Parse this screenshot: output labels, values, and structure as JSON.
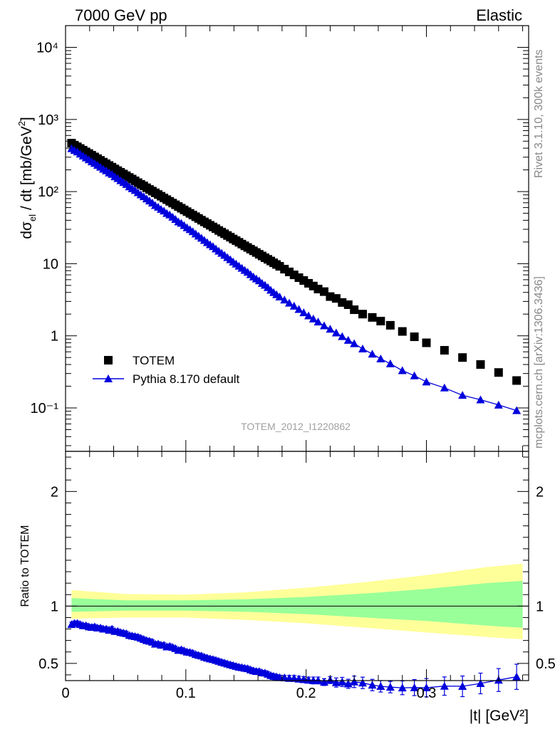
{
  "header": {
    "left": "7000 GeV pp",
    "right": "Elastic"
  },
  "side_texts": {
    "rivet": "Rivet 3.1.10,  300k events",
    "mcplots": "mcplots.cern.ch [arXiv:1306.3436]"
  },
  "chart_data": [
    {
      "type": "scatter",
      "panel": "main",
      "xlabel": "|t| [GeV²]",
      "ylabel": "dσ_el / dt [mb/GeV²]",
      "analysis_label": "TOTEM_2012_I1220862",
      "xlim": [
        0,
        0.385
      ],
      "ylim": [
        0.025,
        20000
      ],
      "yscale": "log",
      "x_ticks": [
        "0",
        "0.1",
        "0.2",
        "0.3"
      ],
      "y_ticks": [
        "10⁻¹",
        "1",
        "10",
        "10²",
        "10³",
        "10⁴"
      ],
      "legend_position": "bottom-left",
      "series": [
        {
          "name": "TOTEM",
          "marker": "square",
          "color": "#000000",
          "x": [
            0.005,
            0.0074,
            0.0098,
            0.0122,
            0.0146,
            0.017,
            0.0194,
            0.0218,
            0.0242,
            0.0266,
            0.029,
            0.0314,
            0.0338,
            0.0362,
            0.0386,
            0.041,
            0.0434,
            0.0458,
            0.0482,
            0.0506,
            0.053,
            0.0554,
            0.0578,
            0.0602,
            0.0626,
            0.065,
            0.0674,
            0.0698,
            0.0722,
            0.0746,
            0.077,
            0.0794,
            0.0818,
            0.0842,
            0.0866,
            0.089,
            0.0914,
            0.0938,
            0.0962,
            0.0986,
            0.101,
            0.1034,
            0.1058,
            0.1082,
            0.1106,
            0.113,
            0.1154,
            0.1178,
            0.1202,
            0.1226,
            0.125,
            0.1274,
            0.1298,
            0.1322,
            0.1346,
            0.137,
            0.1394,
            0.1418,
            0.1442,
            0.1466,
            0.149,
            0.1514,
            0.1538,
            0.1562,
            0.1586,
            0.161,
            0.1634,
            0.1658,
            0.1682,
            0.1706,
            0.173,
            0.1754,
            0.178,
            0.182,
            0.186,
            0.19,
            0.194,
            0.198,
            0.202,
            0.206,
            0.21,
            0.215,
            0.22,
            0.225,
            0.23,
            0.235,
            0.24,
            0.247,
            0.255,
            0.262,
            0.27,
            0.28,
            0.29,
            0.3,
            0.315,
            0.33,
            0.345,
            0.36,
            0.375
          ],
          "y": [
            470,
            440,
            418,
            396,
            375,
            355,
            337,
            319,
            302,
            286,
            271,
            256,
            243,
            230,
            218,
            206,
            195,
            185,
            175,
            166,
            157,
            149,
            141,
            133,
            126,
            120,
            113,
            107,
            101.5,
            96.1,
            91,
            86.2,
            81.6,
            77.3,
            73.2,
            69.3,
            65.6,
            62.1,
            58.8,
            55.7,
            52.7,
            49.9,
            47.3,
            44.8,
            42.4,
            40.1,
            38,
            36,
            34.1,
            32.3,
            30.6,
            28.9,
            27.4,
            26,
            24.6,
            23.3,
            22,
            20.9,
            19.8,
            18.7,
            17.7,
            16.8,
            15.9,
            15.1,
            14.3,
            13.5,
            12.8,
            12.1,
            11.5,
            10.9,
            10.3,
            9.75,
            9.2,
            8.4,
            7.7,
            7,
            6.4,
            5.85,
            5.35,
            4.9,
            4.45,
            4.1,
            3.5,
            3.3,
            2.9,
            2.7,
            2.3,
            2,
            1.8,
            1.6,
            1.4,
            1.15,
            0.97,
            0.8,
            0.63,
            0.5,
            0.4,
            0.31,
            0.24
          ]
        },
        {
          "name": "Pythia 8.170 default",
          "marker": "triangle",
          "color": "#0000dd",
          "x": [
            0.005,
            0.0074,
            0.0098,
            0.0122,
            0.0146,
            0.017,
            0.0194,
            0.0218,
            0.0242,
            0.0266,
            0.029,
            0.0314,
            0.0338,
            0.0362,
            0.0386,
            0.041,
            0.0434,
            0.0458,
            0.0482,
            0.0506,
            0.053,
            0.0554,
            0.0578,
            0.0602,
            0.0626,
            0.065,
            0.0674,
            0.0698,
            0.0722,
            0.0746,
            0.077,
            0.0794,
            0.0818,
            0.0842,
            0.0866,
            0.089,
            0.0914,
            0.0938,
            0.0962,
            0.0986,
            0.101,
            0.1034,
            0.1058,
            0.1082,
            0.1106,
            0.113,
            0.1154,
            0.1178,
            0.1202,
            0.1226,
            0.125,
            0.1274,
            0.1298,
            0.1322,
            0.1346,
            0.137,
            0.1394,
            0.1418,
            0.1442,
            0.1466,
            0.149,
            0.1514,
            0.1538,
            0.1562,
            0.1586,
            0.161,
            0.1634,
            0.1658,
            0.1682,
            0.1706,
            0.173,
            0.1754,
            0.178,
            0.182,
            0.186,
            0.19,
            0.194,
            0.198,
            0.202,
            0.206,
            0.21,
            0.215,
            0.22,
            0.225,
            0.23,
            0.235,
            0.24,
            0.247,
            0.255,
            0.262,
            0.27,
            0.28,
            0.29,
            0.3,
            0.315,
            0.33,
            0.345,
            0.36,
            0.375
          ],
          "y": [
            395,
            374,
            356,
            332,
            312,
            294,
            277,
            260,
            247,
            232,
            219,
            205,
            195,
            182,
            174,
            161,
            152,
            142,
            134,
            126,
            117,
            110,
            104,
            97,
            90.6,
            85.2,
            79.3,
            74.4,
            69.6,
            64.3,
            61,
            56.9,
            53.9,
            49.9,
            47.6,
            44.4,
            41.3,
            38.2,
            36.5,
            34,
            31.6,
            29.8,
            27.9,
            25.9,
            24.2,
            22.7,
            21.1,
            19.7,
            18.4,
            17.3,
            16.1,
            15,
            14,
            13.1,
            12.2,
            11.4,
            10.6,
            9.93,
            9.27,
            8.68,
            8.12,
            7.64,
            7.08,
            6.58,
            6.17,
            5.81,
            5.36,
            5.04,
            4.68,
            4.3,
            4,
            3.73,
            3.47,
            3.15,
            2.85,
            2.59,
            2.33,
            2.1,
            1.9,
            1.72,
            1.56,
            1.38,
            1.24,
            1.1,
            0.98,
            0.87,
            0.78,
            0.66,
            0.56,
            0.48,
            0.41,
            0.33,
            0.28,
            0.23,
            0.19,
            0.15,
            0.13,
            0.11,
            0.092
          ],
          "y_err": [
            5,
            5,
            5,
            5,
            5,
            5,
            5,
            5,
            5,
            5,
            5,
            5,
            5,
            5,
            5,
            5,
            5,
            5,
            5,
            5,
            5,
            5,
            5,
            5,
            5,
            5,
            5,
            5,
            5,
            5,
            5,
            5,
            5,
            5,
            5,
            5,
            5,
            5,
            5,
            5,
            5,
            5,
            5,
            5,
            5,
            5,
            5,
            5,
            5,
            5,
            5,
            5,
            5,
            5,
            5,
            5,
            5,
            5,
            5,
            5,
            5,
            5,
            5,
            5,
            5,
            5,
            5,
            5,
            5,
            5,
            5,
            5,
            5,
            5,
            5,
            5,
            5,
            5,
            5,
            5,
            5,
            5,
            5,
            5,
            5,
            5,
            5,
            5,
            5,
            5,
            5,
            5,
            5,
            5,
            5,
            5,
            5,
            5,
            5
          ]
        }
      ]
    },
    {
      "type": "line",
      "panel": "ratio",
      "ylabel": "Ratio to TOTEM",
      "xlim": [
        0,
        0.385
      ],
      "ylim": [
        0.35,
        2.35
      ],
      "y_ticks": [
        "0.5",
        "1",
        "2"
      ],
      "bands": {
        "yellow_color": "#ffff99",
        "green_color": "#99ff99",
        "x": [
          0.005,
          0.05,
          0.1,
          0.15,
          0.2,
          0.25,
          0.3,
          0.35,
          0.38
        ],
        "yellow_up": [
          1.14,
          1.105,
          1.1,
          1.12,
          1.16,
          1.21,
          1.27,
          1.34,
          1.37
        ],
        "yellow_down": [
          0.89,
          0.9,
          0.9,
          0.88,
          0.85,
          0.81,
          0.77,
          0.73,
          0.71
        ],
        "green_up": [
          1.07,
          1.05,
          1.05,
          1.06,
          1.08,
          1.11,
          1.15,
          1.2,
          1.22
        ],
        "green_down": [
          0.95,
          0.96,
          0.96,
          0.95,
          0.93,
          0.9,
          0.87,
          0.83,
          0.81
        ]
      },
      "series": [
        {
          "name": "Pythia 8.170 default",
          "color": "#0000dd",
          "x": [
            0.005,
            0.0074,
            0.0098,
            0.0122,
            0.0146,
            0.017,
            0.0194,
            0.0218,
            0.0242,
            0.0266,
            0.029,
            0.0314,
            0.0338,
            0.0362,
            0.0386,
            0.041,
            0.0434,
            0.0458,
            0.0482,
            0.0506,
            0.053,
            0.0554,
            0.0578,
            0.0602,
            0.0626,
            0.065,
            0.0674,
            0.0698,
            0.0722,
            0.0746,
            0.077,
            0.0794,
            0.0818,
            0.0842,
            0.0866,
            0.089,
            0.0914,
            0.0938,
            0.0962,
            0.0986,
            0.101,
            0.1034,
            0.1058,
            0.1082,
            0.1106,
            0.113,
            0.1154,
            0.1178,
            0.1202,
            0.1226,
            0.125,
            0.1274,
            0.1298,
            0.1322,
            0.1346,
            0.137,
            0.1394,
            0.1418,
            0.1442,
            0.1466,
            0.149,
            0.1514,
            0.1538,
            0.1562,
            0.1586,
            0.161,
            0.1634,
            0.1658,
            0.1682,
            0.1706,
            0.173,
            0.1754,
            0.178,
            0.182,
            0.186,
            0.19,
            0.194,
            0.198,
            0.202,
            0.206,
            0.21,
            0.215,
            0.22,
            0.225,
            0.23,
            0.235,
            0.24,
            0.247,
            0.255,
            0.262,
            0.27,
            0.28,
            0.29,
            0.3,
            0.315,
            0.33,
            0.345,
            0.36,
            0.375
          ],
          "y": [
            0.84,
            0.85,
            0.85,
            0.84,
            0.83,
            0.83,
            0.82,
            0.815,
            0.82,
            0.81,
            0.81,
            0.8,
            0.8,
            0.79,
            0.8,
            0.78,
            0.78,
            0.77,
            0.765,
            0.76,
            0.745,
            0.74,
            0.735,
            0.73,
            0.72,
            0.71,
            0.7,
            0.695,
            0.686,
            0.669,
            0.67,
            0.66,
            0.66,
            0.645,
            0.65,
            0.64,
            0.63,
            0.615,
            0.62,
            0.61,
            0.6,
            0.597,
            0.59,
            0.578,
            0.571,
            0.566,
            0.555,
            0.547,
            0.54,
            0.535,
            0.527,
            0.519,
            0.511,
            0.504,
            0.496,
            0.489,
            0.482,
            0.475,
            0.468,
            0.464,
            0.459,
            0.455,
            0.445,
            0.436,
            0.431,
            0.43,
            0.419,
            0.417,
            0.407,
            0.395,
            0.388,
            0.383,
            0.377,
            0.375,
            0.37,
            0.37,
            0.364,
            0.359,
            0.355,
            0.351,
            0.351,
            0.337,
            0.354,
            0.333,
            0.338,
            0.322,
            0.339,
            0.33,
            0.311,
            0.3,
            0.293,
            0.287,
            0.289,
            0.288,
            0.302,
            0.3,
            0.325,
            0.355,
            0.383
          ],
          "y_err": [
            0.02,
            0.02,
            0.02,
            0.02,
            0.02,
            0.02,
            0.02,
            0.02,
            0.02,
            0.02,
            0.02,
            0.02,
            0.02,
            0.02,
            0.02,
            0.02,
            0.02,
            0.02,
            0.02,
            0.02,
            0.02,
            0.02,
            0.02,
            0.02,
            0.02,
            0.02,
            0.02,
            0.02,
            0.02,
            0.02,
            0.02,
            0.02,
            0.02,
            0.02,
            0.02,
            0.02,
            0.02,
            0.02,
            0.02,
            0.02,
            0.02,
            0.02,
            0.02,
            0.02,
            0.02,
            0.02,
            0.02,
            0.02,
            0.02,
            0.02,
            0.02,
            0.02,
            0.02,
            0.02,
            0.02,
            0.02,
            0.02,
            0.02,
            0.02,
            0.02,
            0.02,
            0.02,
            0.02,
            0.02,
            0.02,
            0.02,
            0.02,
            0.02,
            0.02,
            0.02,
            0.02,
            0.02,
            0.02,
            0.02,
            0.025,
            0.025,
            0.025,
            0.025,
            0.025,
            0.03,
            0.03,
            0.03,
            0.03,
            0.04,
            0.04,
            0.04,
            0.05,
            0.05,
            0.05,
            0.05,
            0.05,
            0.06,
            0.07,
            0.08,
            0.08,
            0.09,
            0.09,
            0.1,
            0.11
          ]
        }
      ]
    }
  ]
}
